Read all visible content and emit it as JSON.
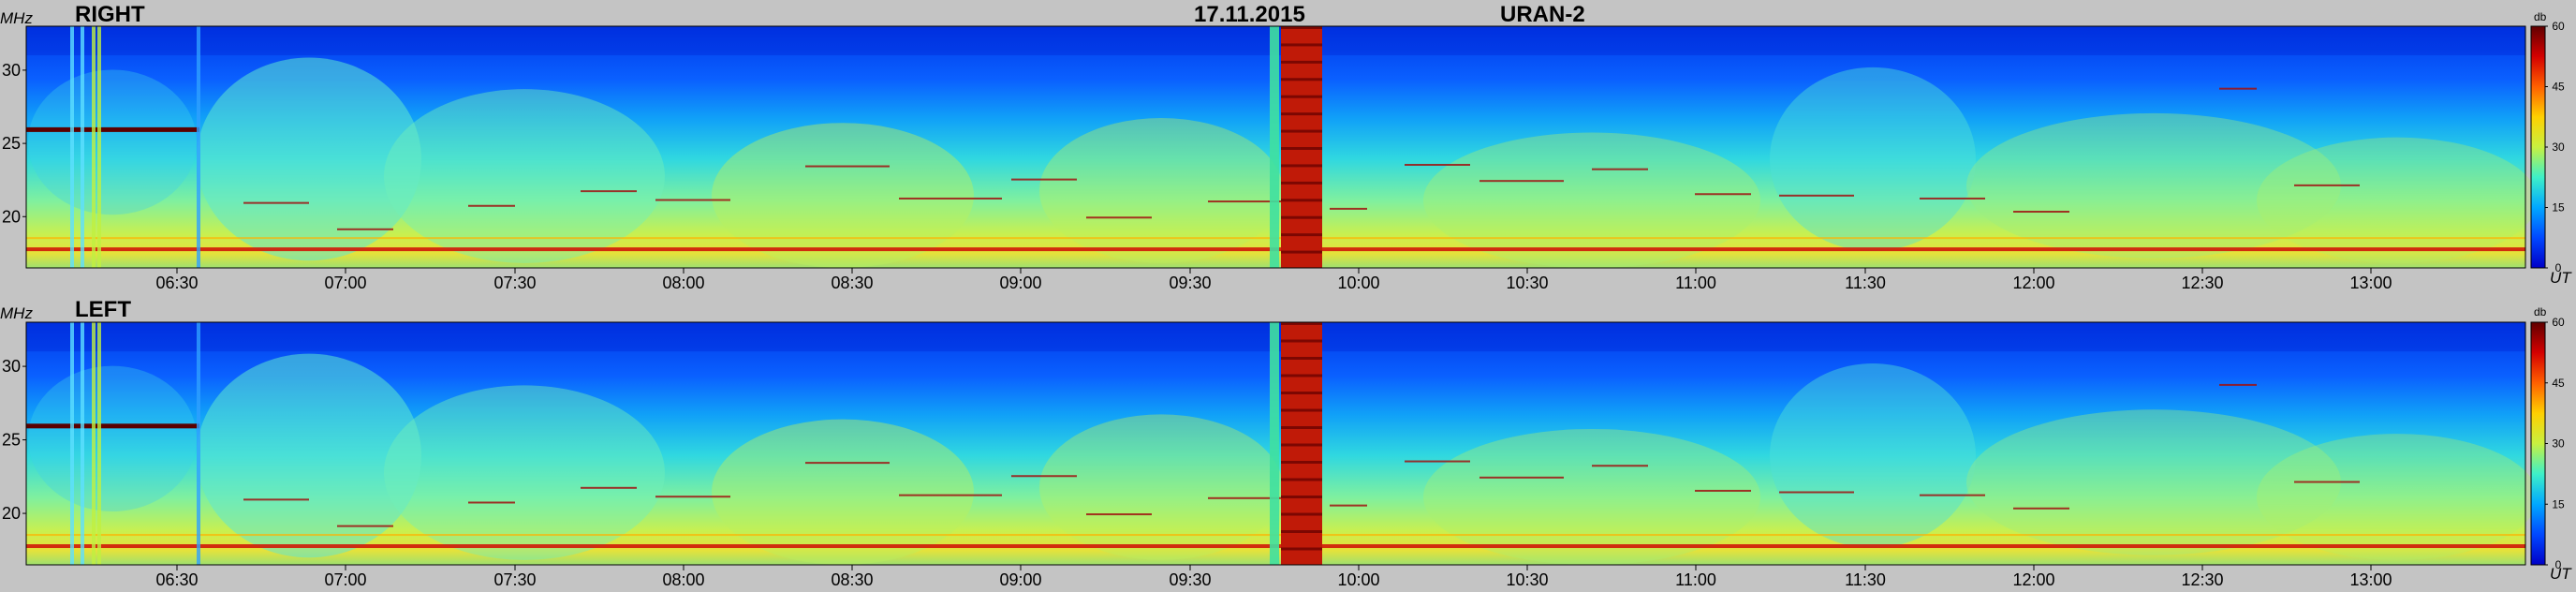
{
  "header": {
    "date": "17.11.2015",
    "instrument": "URAN-2"
  },
  "colors": {
    "background": "#c4c4c4",
    "colormap": [
      "#0000c8",
      "#0048ff",
      "#00a8ff",
      "#3ef0c8",
      "#c8f040",
      "#ffd000",
      "#ff6000",
      "#d40000",
      "#600000"
    ]
  },
  "chart_data": [
    {
      "type": "heatmap",
      "title": "RIGHT",
      "ylabel": "MHz",
      "xlabel": "UT",
      "y_ticks": [
        20,
        25,
        30
      ],
      "ylim": [
        16.5,
        33
      ],
      "x_ticks": [
        "06:30",
        "07:00",
        "07:30",
        "08:00",
        "08:30",
        "09:00",
        "09:30",
        "10:00",
        "10:30",
        "11:00",
        "11:30",
        "12:00",
        "12:30",
        "13:00"
      ],
      "colorbar": {
        "label": "db",
        "ticks": [
          0,
          15,
          30,
          45,
          60
        ],
        "range": [
          0,
          60
        ]
      },
      "grid": false
    },
    {
      "type": "heatmap",
      "title": "LEFT",
      "ylabel": "MHz",
      "xlabel": "UT",
      "y_ticks": [
        20,
        25,
        30
      ],
      "ylim": [
        16.5,
        33
      ],
      "x_ticks": [
        "06:30",
        "07:00",
        "07:30",
        "08:00",
        "08:30",
        "09:00",
        "09:30",
        "10:00",
        "10:30",
        "11:00",
        "11:30",
        "12:00",
        "12:30",
        "13:00"
      ],
      "colorbar": {
        "label": "db",
        "ticks": [
          0,
          15,
          30,
          45,
          60
        ],
        "range": [
          0,
          60
        ]
      },
      "grid": false
    }
  ]
}
